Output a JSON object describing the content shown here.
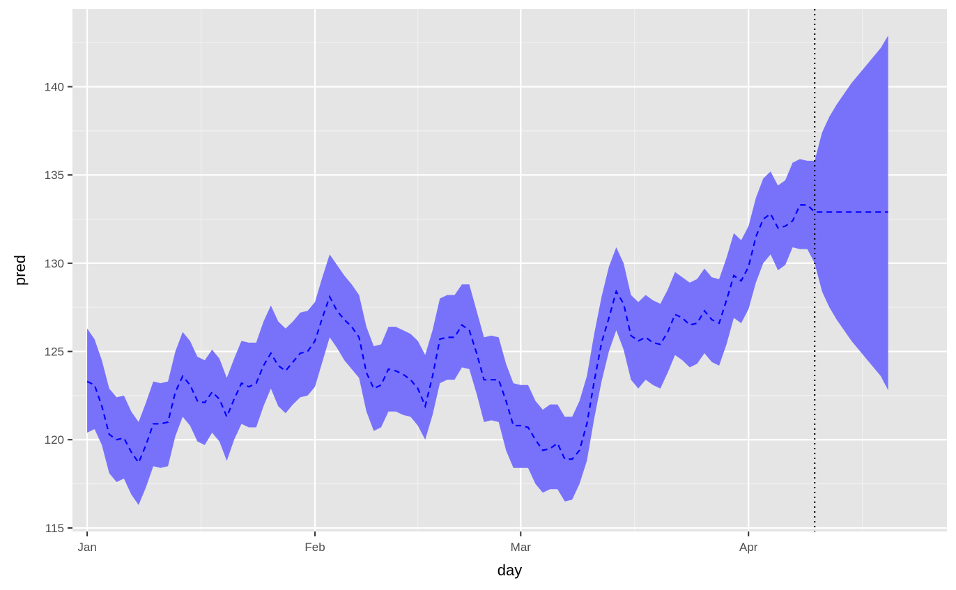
{
  "chart_data": {
    "type": "line",
    "xlabel": "day",
    "ylabel": "pred",
    "x_unit": "day of year (Jan 1 = 0)",
    "xlim": [
      -2,
      117
    ],
    "ylim": [
      114.8,
      144.4
    ],
    "x_ticks": [
      {
        "value": 0,
        "label": "Jan"
      },
      {
        "value": 31,
        "label": "Feb"
      },
      {
        "value": 59,
        "label": "Mar"
      },
      {
        "value": 90,
        "label": "Apr"
      }
    ],
    "y_ticks": [
      {
        "value": 115,
        "label": "115"
      },
      {
        "value": 120,
        "label": "120"
      },
      {
        "value": 125,
        "label": "125"
      },
      {
        "value": 130,
        "label": "130"
      },
      {
        "value": 135,
        "label": "135"
      },
      {
        "value": 140,
        "label": "140"
      }
    ],
    "grid": true,
    "background_color": "#e5e5e5",
    "band_color": "#7872fb",
    "line_color": "#0000ff",
    "vline_x": 99,
    "series": [
      {
        "kind": "dashed_line",
        "x": [
          0,
          1,
          2,
          3,
          4,
          5,
          6,
          7,
          8,
          9,
          10,
          11,
          12,
          13,
          14,
          15,
          16,
          17,
          18,
          19,
          20,
          21,
          22,
          23,
          24,
          25,
          26,
          27,
          28,
          29,
          30,
          31,
          32,
          33,
          34,
          35,
          36,
          37,
          38,
          39,
          40,
          41,
          42,
          43,
          44,
          45,
          46,
          47,
          48,
          49,
          50,
          51,
          52,
          53,
          54,
          55,
          56,
          57,
          58,
          59,
          60,
          61,
          62,
          63,
          64,
          65,
          66,
          67,
          68,
          69,
          70,
          71,
          72,
          73,
          74,
          75,
          76,
          77,
          78,
          79,
          80,
          81,
          82,
          83,
          84,
          85,
          86,
          87,
          88,
          89,
          90,
          91,
          92,
          93,
          94,
          95,
          96,
          97,
          98,
          99,
          109
        ],
        "y": [
          123.3,
          123.1,
          121.9,
          120.3,
          120.0,
          120.1,
          119.3,
          118.7,
          119.7,
          120.9,
          120.9,
          121.0,
          122.7,
          123.6,
          123.1,
          122.2,
          122.1,
          122.7,
          122.3,
          121.3,
          122.3,
          123.2,
          123.0,
          123.2,
          124.2,
          124.9,
          124.2,
          123.9,
          124.4,
          124.9,
          125.0,
          125.6,
          126.9,
          128.1,
          127.3,
          126.8,
          126.4,
          125.8,
          123.8,
          122.9,
          123.1,
          124.0,
          123.9,
          123.7,
          123.4,
          122.9,
          121.9,
          123.6,
          125.7,
          125.8,
          125.8,
          126.5,
          126.2,
          124.9,
          123.4,
          123.4,
          123.4,
          122.2,
          120.8,
          120.8,
          120.7,
          120.0,
          119.4,
          119.5,
          119.8,
          118.9,
          118.9,
          119.4,
          120.9,
          123.3,
          125.5,
          126.9,
          128.4,
          127.7,
          125.9,
          125.6,
          125.8,
          125.5,
          125.4,
          126.1,
          127.1,
          126.9,
          126.5,
          126.6,
          127.3,
          126.8,
          126.6,
          127.9,
          129.3,
          129.0,
          129.8,
          131.5,
          132.5,
          132.8,
          132.0,
          132.1,
          132.4,
          133.3,
          133.3,
          132.9,
          132.9
        ]
      },
      {
        "kind": "ribbon_upper",
        "x": [
          0,
          1,
          2,
          3,
          4,
          5,
          6,
          7,
          8,
          9,
          10,
          11,
          12,
          13,
          14,
          15,
          16,
          17,
          18,
          19,
          20,
          21,
          22,
          23,
          24,
          25,
          26,
          27,
          28,
          29,
          30,
          31,
          32,
          33,
          34,
          35,
          36,
          37,
          38,
          39,
          40,
          41,
          42,
          43,
          44,
          45,
          46,
          47,
          48,
          49,
          50,
          51,
          52,
          53,
          54,
          55,
          56,
          57,
          58,
          59,
          60,
          61,
          62,
          63,
          64,
          65,
          66,
          67,
          68,
          69,
          70,
          71,
          72,
          73,
          74,
          75,
          76,
          77,
          78,
          79,
          80,
          81,
          82,
          83,
          84,
          85,
          86,
          87,
          88,
          89,
          90,
          91,
          92,
          93,
          94,
          95,
          96,
          97,
          98,
          99,
          100,
          101,
          102,
          103,
          104,
          105,
          106,
          107,
          108,
          109
        ],
        "y": [
          126.3,
          125.7,
          124.5,
          122.9,
          122.4,
          122.5,
          121.6,
          121.0,
          122.1,
          123.3,
          123.2,
          123.3,
          125.0,
          126.1,
          125.6,
          124.7,
          124.5,
          125.1,
          124.6,
          123.5,
          124.6,
          125.6,
          125.5,
          125.5,
          126.7,
          127.6,
          126.7,
          126.3,
          126.7,
          127.2,
          127.3,
          127.8,
          129.2,
          130.5,
          129.9,
          129.3,
          128.8,
          128.2,
          126.4,
          125.3,
          125.4,
          126.4,
          126.4,
          126.2,
          126.0,
          125.6,
          124.8,
          126.2,
          128.0,
          128.2,
          128.2,
          128.8,
          128.8,
          127.3,
          125.8,
          125.9,
          125.8,
          124.3,
          123.2,
          123.1,
          123.1,
          122.2,
          121.7,
          122.0,
          122.0,
          121.3,
          121.3,
          122.2,
          123.6,
          126.0,
          128.1,
          129.8,
          130.9,
          130.0,
          128.2,
          127.8,
          128.2,
          127.9,
          127.7,
          128.5,
          129.5,
          129.2,
          128.9,
          129.1,
          129.7,
          129.2,
          129.1,
          130.3,
          131.7,
          131.3,
          132.1,
          133.7,
          134.8,
          135.2,
          134.4,
          134.7,
          135.7,
          135.9,
          135.8,
          135.8,
          137.4,
          138.3,
          139.0,
          139.6,
          140.2,
          140.7,
          141.2,
          141.7,
          142.2,
          142.9
        ]
      },
      {
        "kind": "ribbon_lower",
        "x": [
          0,
          1,
          2,
          3,
          4,
          5,
          6,
          7,
          8,
          9,
          10,
          11,
          12,
          13,
          14,
          15,
          16,
          17,
          18,
          19,
          20,
          21,
          22,
          23,
          24,
          25,
          26,
          27,
          28,
          29,
          30,
          31,
          32,
          33,
          34,
          35,
          36,
          37,
          38,
          39,
          40,
          41,
          42,
          43,
          44,
          45,
          46,
          47,
          48,
          49,
          50,
          51,
          52,
          53,
          54,
          55,
          56,
          57,
          58,
          59,
          60,
          61,
          62,
          63,
          64,
          65,
          66,
          67,
          68,
          69,
          70,
          71,
          72,
          73,
          74,
          75,
          76,
          77,
          78,
          79,
          80,
          81,
          82,
          83,
          84,
          85,
          86,
          87,
          88,
          89,
          90,
          91,
          92,
          93,
          94,
          95,
          96,
          97,
          98,
          99,
          100,
          101,
          102,
          103,
          104,
          105,
          106,
          107,
          108,
          109
        ],
        "y": [
          120.4,
          120.6,
          119.7,
          118.1,
          117.6,
          117.8,
          116.9,
          116.3,
          117.3,
          118.5,
          118.4,
          118.5,
          120.2,
          121.3,
          120.8,
          119.9,
          119.7,
          120.4,
          119.9,
          118.8,
          120.0,
          120.9,
          120.7,
          120.7,
          121.9,
          122.9,
          121.9,
          121.5,
          122.0,
          122.4,
          122.5,
          123.0,
          124.4,
          125.8,
          125.2,
          124.5,
          124.0,
          123.5,
          121.6,
          120.5,
          120.7,
          121.6,
          121.6,
          121.4,
          121.3,
          120.8,
          120.0,
          121.4,
          123.2,
          123.4,
          123.4,
          124.1,
          124.0,
          122.6,
          121.0,
          121.1,
          121.0,
          119.4,
          118.4,
          118.4,
          118.4,
          117.5,
          117.0,
          117.2,
          117.2,
          116.5,
          116.6,
          117.5,
          118.8,
          121.2,
          123.3,
          125.0,
          126.2,
          125.1,
          123.4,
          122.9,
          123.4,
          123.1,
          122.9,
          123.8,
          124.8,
          124.5,
          124.1,
          124.3,
          124.9,
          124.4,
          124.2,
          125.4,
          126.9,
          126.6,
          127.4,
          128.9,
          130.0,
          130.5,
          129.6,
          129.9,
          130.9,
          130.8,
          130.8,
          130.0,
          128.4,
          127.5,
          126.8,
          126.2,
          125.6,
          125.1,
          124.6,
          124.1,
          123.6,
          122.8
        ]
      }
    ]
  }
}
